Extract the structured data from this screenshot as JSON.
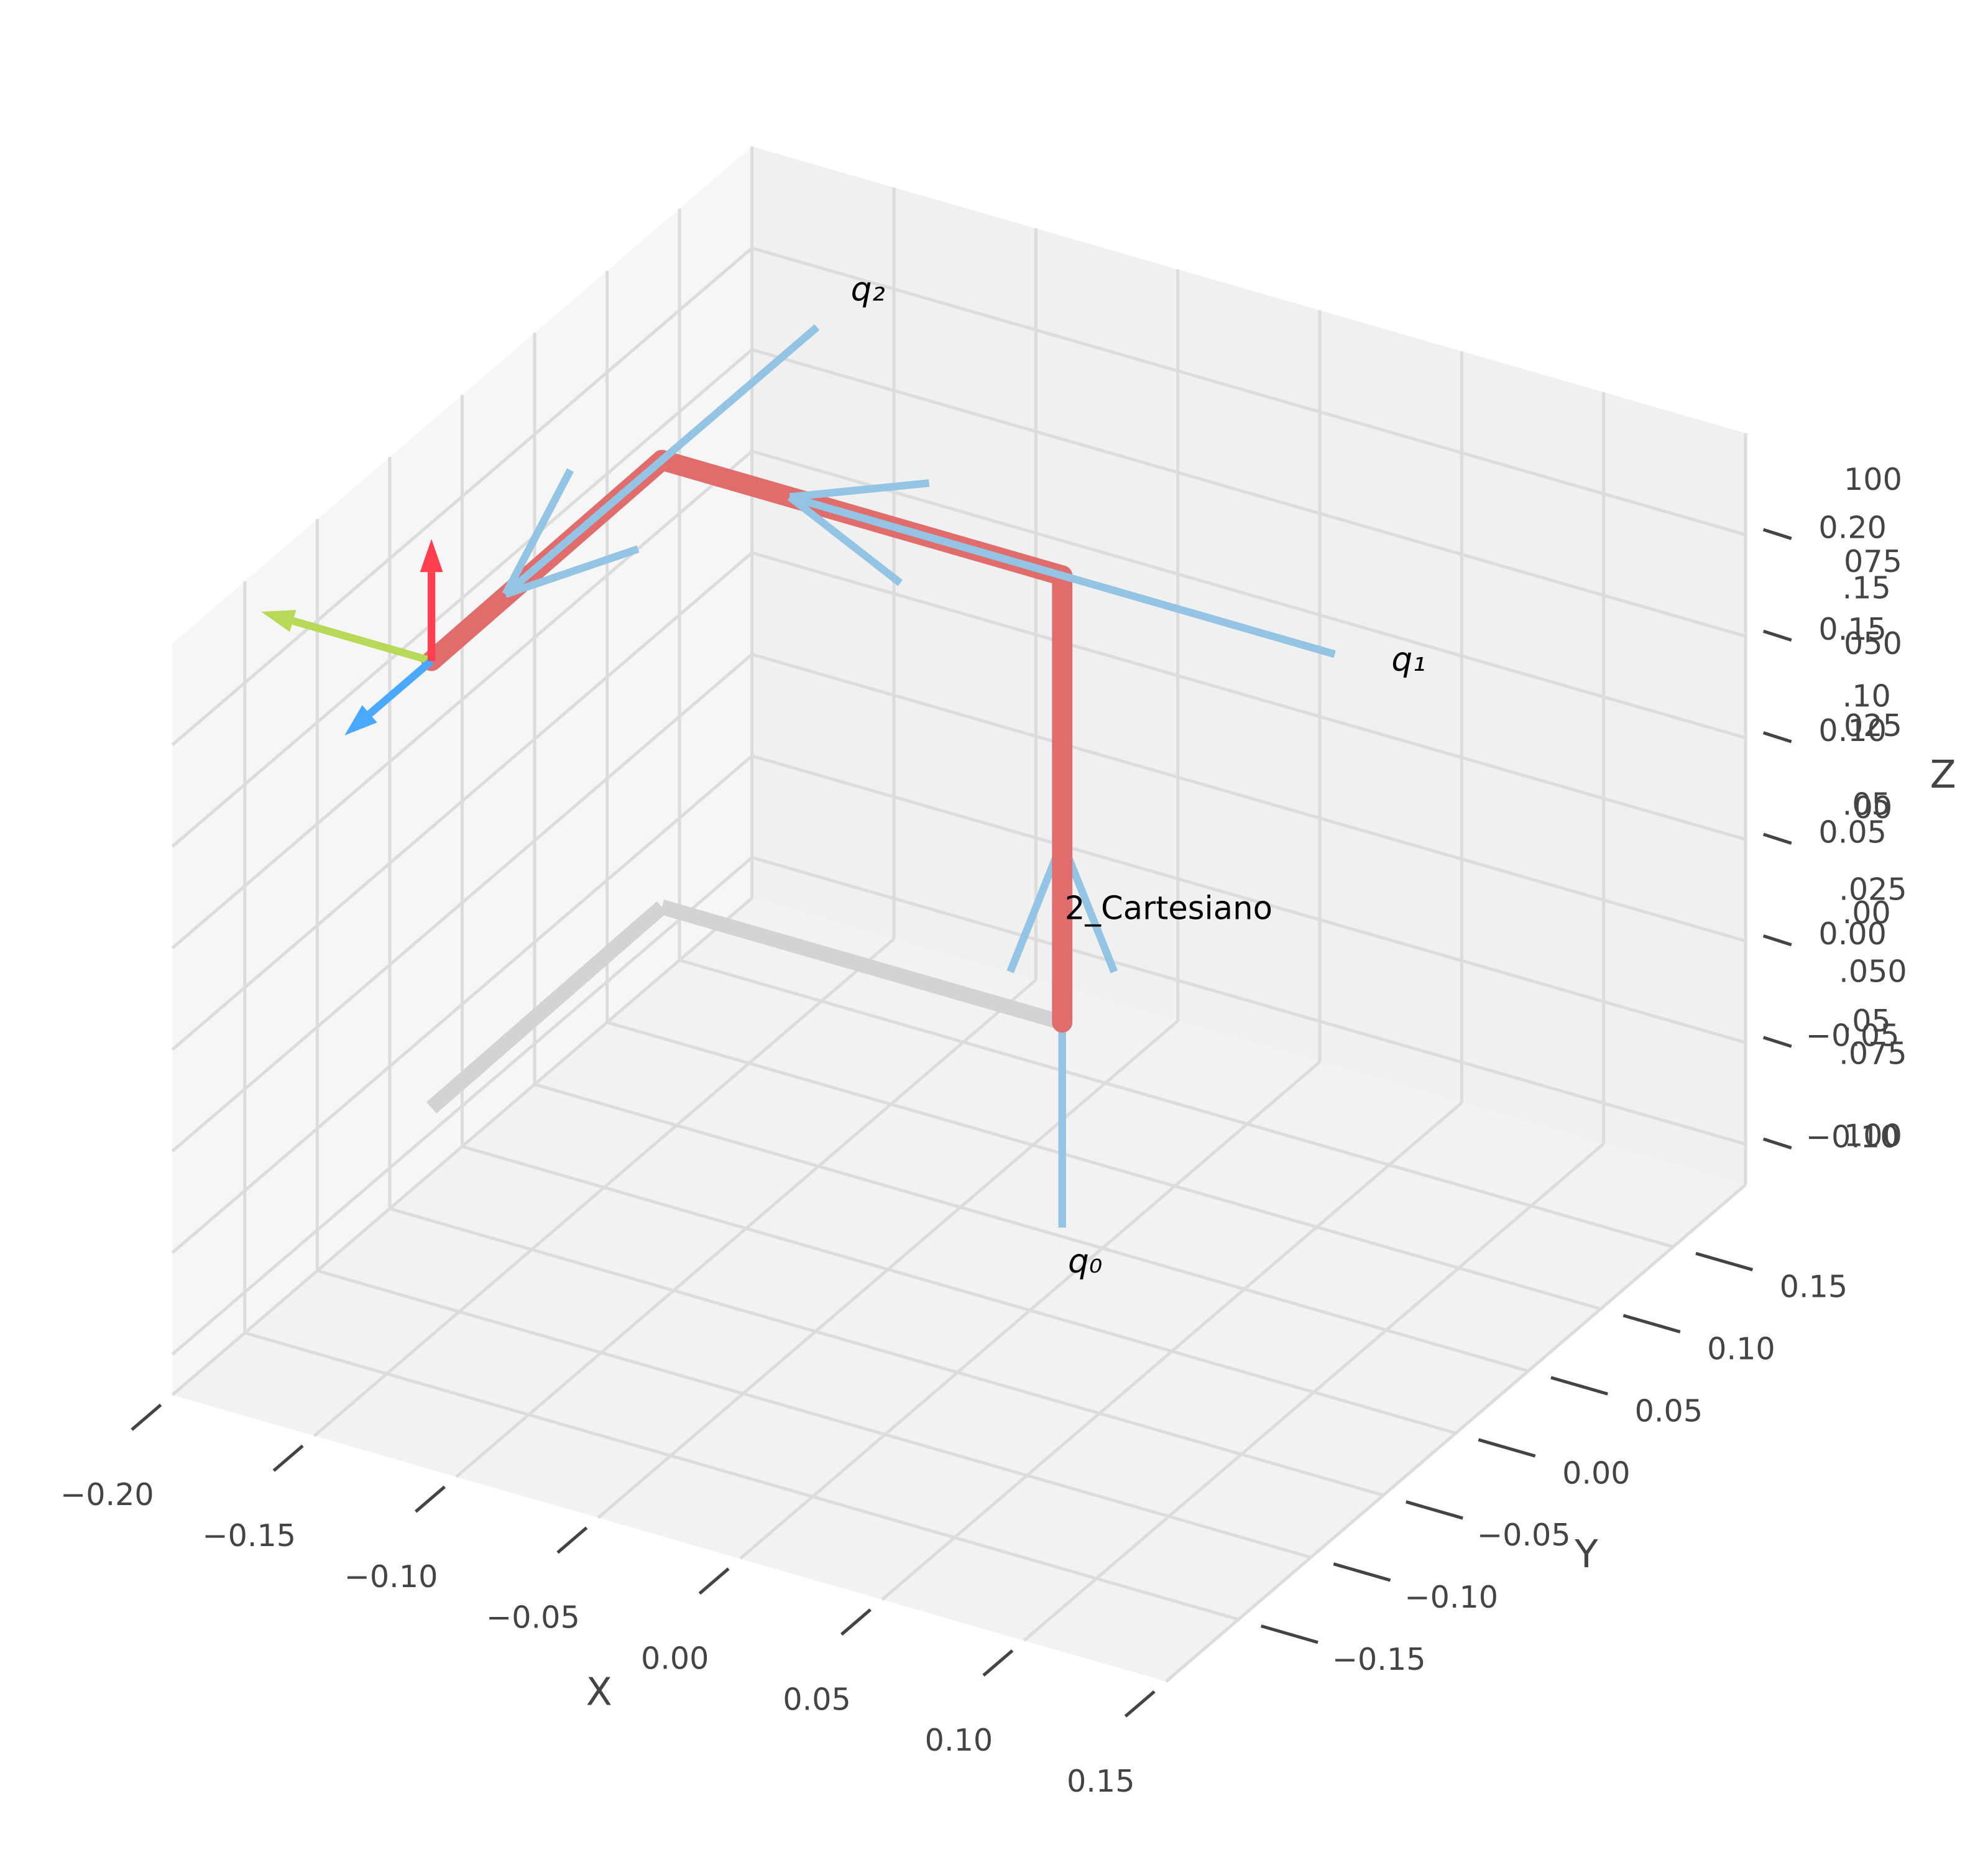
{
  "chart_data": {
    "type": "robot3d",
    "xlabel": "X",
    "ylabel": "Y",
    "zlabel": "Z",
    "xlim": [
      -0.2,
      0.15
    ],
    "ylim": [
      -0.2,
      0.2
    ],
    "zlim": [
      -0.12,
      0.25
    ],
    "xticks": [
      {
        "value": -0.2,
        "label": "−0.20"
      },
      {
        "value": -0.15,
        "label": "−0.15"
      },
      {
        "value": -0.1,
        "label": "−0.10"
      },
      {
        "value": -0.05,
        "label": "−0.05"
      },
      {
        "value": 0,
        "label": "0.00"
      },
      {
        "value": 0.05,
        "label": "0.05"
      },
      {
        "value": 0.1,
        "label": "0.10"
      },
      {
        "value": 0.15,
        "label": "0.15"
      }
    ],
    "yticks": [
      {
        "value": -0.15,
        "label": "−0.15"
      },
      {
        "value": -0.1,
        "label": "−0.10"
      },
      {
        "value": -0.05,
        "label": "−0.05"
      },
      {
        "value": 0,
        "label": "0.00"
      },
      {
        "value": 0.05,
        "label": "0.05"
      },
      {
        "value": 0.1,
        "label": "0.10"
      },
      {
        "value": 0.15,
        "label": "0.15"
      }
    ],
    "zticks": [
      {
        "value": -0.1,
        "label": "−0.10"
      },
      {
        "value": -0.05,
        "label": "−0.05"
      },
      {
        "value": 0,
        "label": "0.00"
      },
      {
        "value": 0.05,
        "label": "0.05"
      },
      {
        "value": 0.1,
        "label": "0.10"
      },
      {
        "value": 0.15,
        "label": "0.15"
      },
      {
        "value": 0.2,
        "label": "0.20"
      }
    ],
    "z2lim": [
      -0.1,
      0.1
    ],
    "z2ticks": [
      {
        "value": 0.1,
        "label": "100"
      },
      {
        "value": 0.075,
        "label": "075"
      },
      {
        "value": 0.05,
        "label": "050"
      },
      {
        "value": 0.025,
        "label": "025"
      },
      {
        "value": 0,
        "label": "00"
      },
      {
        "value": -0.025,
        "label": ".025"
      },
      {
        "value": -0.05,
        "label": ".050"
      },
      {
        "value": -0.075,
        "label": ".075"
      },
      {
        "value": -0.1,
        "label": "100"
      }
    ],
    "z3lim": [
      -0.05,
      0.15
    ],
    "z3ticks": [
      {
        "value": 0.15,
        "label": ".15"
      },
      {
        "value": 0.1,
        "label": ".10"
      },
      {
        "value": 0.05,
        "label": ".05"
      },
      {
        "value": 0,
        "label": ".00"
      },
      {
        "value": -0.05,
        "label": ".05"
      }
    ],
    "grid": true,
    "robot": {
      "name": "2_Cartesiano",
      "color": "#e06c6c",
      "shadow_color": "#d3d3d3",
      "links": [
        [
          -0.08,
          0.179,
          -0.12
        ],
        [
          -0.08,
          0.179,
          0.1
        ],
        [
          -0.221,
          0.179,
          0.1
        ],
        [
          -0.22,
          0.018,
          0.1
        ]
      ],
      "joint_color": "#93c4e4",
      "joints": [
        {
          "label": "q₀",
          "from": [
            -0.08,
            0.179,
            -0.221
          ],
          "to": [
            -0.08,
            0.179,
            -0.031
          ]
        },
        {
          "label": "q₁",
          "from": [
            0.016,
            0.179,
            0.1
          ],
          "to": [
            -0.176,
            0.179,
            0.1
          ]
        },
        {
          "label": "q₂",
          "from": [
            -0.221,
            0.286,
            0.1
          ],
          "to": [
            -0.221,
            0.071,
            0.1
          ]
        }
      ],
      "frame": [
        {
          "vector": [
            -0.06,
            0,
            0
          ],
          "color": "#b8d957"
        },
        {
          "vector": [
            0,
            -0.06,
            0
          ],
          "color": "#4aa8ff"
        },
        {
          "vector": [
            0,
            0,
            0.06
          ],
          "color": "#ff3f4f"
        }
      ]
    }
  }
}
